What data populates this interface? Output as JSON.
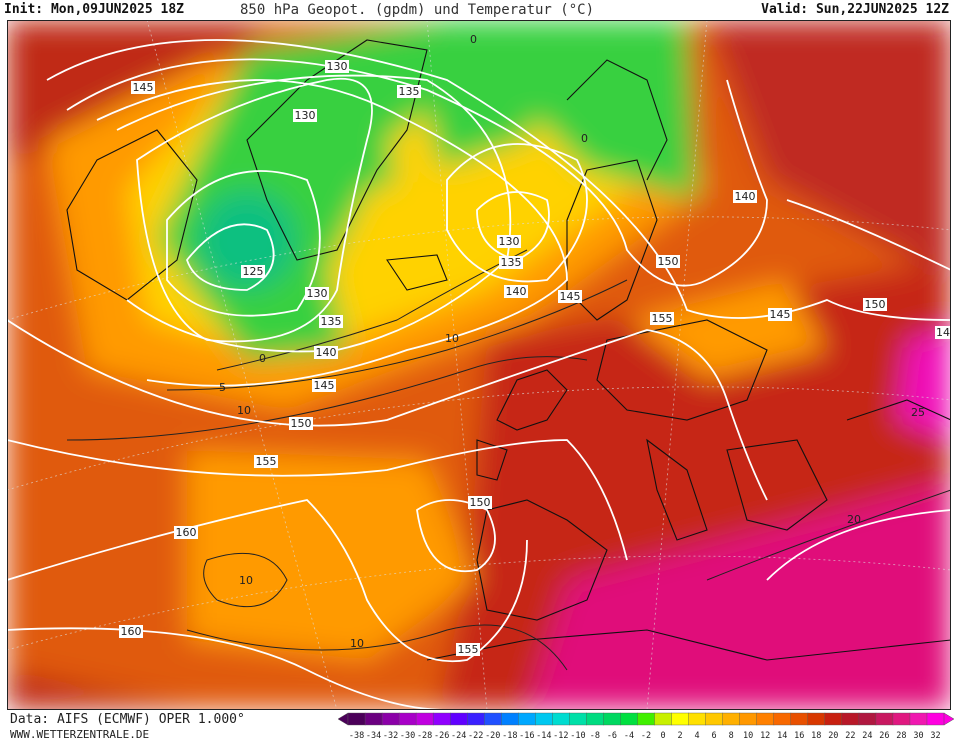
{
  "header": {
    "init": "Init: Mon,09JUN2025 18Z",
    "title": "850 hPa Geopot. (gpdm) und Temperatur (°C)",
    "valid": "Valid: Sun,22JUN2025 12Z"
  },
  "footer": {
    "source": "Data: AIFS (ECMWF) OPER 1.000°",
    "website": "WWW.WETTERZENTRALE.DE"
  },
  "legend": {
    "labels": [
      "-38",
      "-34",
      "-32",
      "-30",
      "-28",
      "-26",
      "-24",
      "-22",
      "-20",
      "-18",
      "-16",
      "-14",
      "-12",
      "-10",
      "-8",
      "-6",
      "-4",
      "-2",
      "0",
      "2",
      "4",
      "6",
      "8",
      "10",
      "12",
      "14",
      "16",
      "18",
      "20",
      "22",
      "24",
      "26",
      "28",
      "30",
      "32"
    ],
    "colors": [
      "#4b0059",
      "#6b0080",
      "#8b00a8",
      "#a800c8",
      "#c000e0",
      "#9000ff",
      "#6000ff",
      "#3a20ff",
      "#2050ff",
      "#0080ff",
      "#00a8ff",
      "#00c8f0",
      "#00dcd0",
      "#00e0a8",
      "#00dc80",
      "#00d860",
      "#00e040",
      "#40f000",
      "#c8f000",
      "#ffff00",
      "#ffe000",
      "#ffc800",
      "#ffb000",
      "#ff9800",
      "#ff8000",
      "#f86800",
      "#e85000",
      "#d83800",
      "#c82010",
      "#b81828",
      "#b01840",
      "#c81860",
      "#e01880",
      "#f018b0",
      "#ff00e0"
    ]
  },
  "map_labels": {
    "geopotential": [
      "145",
      "130",
      "130",
      "135",
      "125",
      "130",
      "135",
      "140",
      "145",
      "150",
      "155",
      "160",
      "160",
      "155",
      "150",
      "130",
      "135",
      "140",
      "145",
      "150",
      "155",
      "140",
      "145",
      "150",
      "14"
    ],
    "temperature": [
      "0",
      "0",
      "5",
      "10",
      "10",
      "0",
      "10",
      "10",
      "20",
      "25"
    ]
  },
  "colors": {
    "isohypse": "#ffffff",
    "isotherm": "#222222",
    "coastline": "#111111"
  }
}
